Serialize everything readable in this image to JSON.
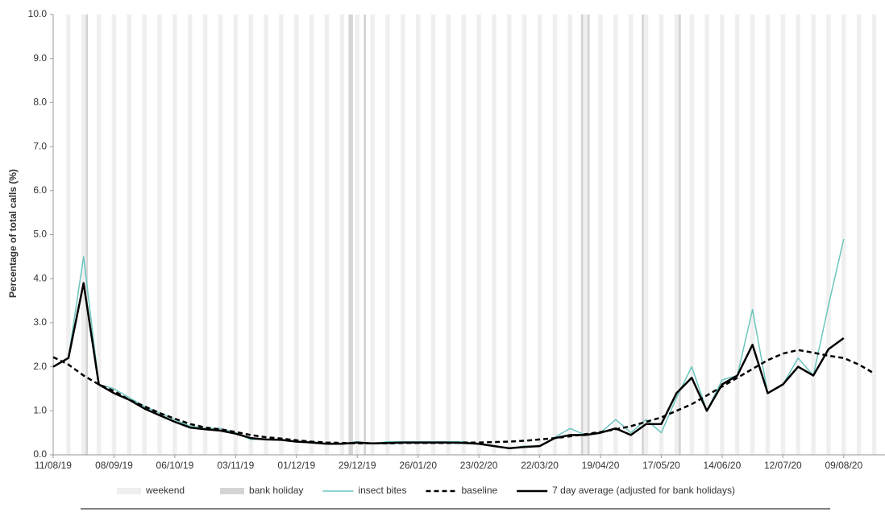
{
  "chart_data": {
    "type": "line",
    "y_label": "Percentage of total calls (%)",
    "x": [
      "11/08/19",
      "18/08/19",
      "25/08/19",
      "01/09/19",
      "08/09/19",
      "15/09/19",
      "22/09/19",
      "29/09/19",
      "06/10/19",
      "13/10/19",
      "20/10/19",
      "27/10/19",
      "03/11/19",
      "10/11/19",
      "17/11/19",
      "24/11/19",
      "01/12/19",
      "08/12/19",
      "15/12/19",
      "22/12/19",
      "29/12/19",
      "05/01/20",
      "12/01/20",
      "19/01/20",
      "26/01/20",
      "02/02/20",
      "09/02/20",
      "16/02/20",
      "23/02/20",
      "01/03/20",
      "08/03/20",
      "15/03/20",
      "22/03/20",
      "29/03/20",
      "05/04/20",
      "12/04/20",
      "19/04/20",
      "26/04/20",
      "03/05/20",
      "10/05/20",
      "17/05/20",
      "24/05/20",
      "31/05/20",
      "07/06/20",
      "14/06/20",
      "21/06/20",
      "28/06/20",
      "05/07/20",
      "12/07/20",
      "19/07/20",
      "26/07/20",
      "02/08/20",
      "09/08/20",
      "16/08/20",
      "23/08/20"
    ],
    "xlim": [
      "11/08/19",
      "28/08/20"
    ],
    "xticks": [
      "11/08/19",
      "08/09/19",
      "06/10/19",
      "03/11/19",
      "01/12/19",
      "29/12/19",
      "26/01/20",
      "23/02/20",
      "22/03/20",
      "19/04/20",
      "17/05/20",
      "14/06/20",
      "12/07/20",
      "09/08/20"
    ],
    "ylim": [
      0,
      10
    ],
    "yticks": [
      {
        "value": 0,
        "label": "0.0"
      },
      {
        "value": 1,
        "label": "1.0"
      },
      {
        "value": 2,
        "label": "2.0"
      },
      {
        "value": 3,
        "label": "3.0"
      },
      {
        "value": 4,
        "label": "4.0"
      },
      {
        "value": 5,
        "label": "5.0"
      },
      {
        "value": 6,
        "label": "6.0"
      },
      {
        "value": 7,
        "label": "7.0"
      },
      {
        "value": 8,
        "label": "8.0"
      },
      {
        "value": 9,
        "label": "9.0"
      },
      {
        "value": 10,
        "label": "10.0"
      }
    ],
    "weekend": {
      "name": "weekend",
      "color": "#efefef"
    },
    "bank_holiday": {
      "name": "bank holiday",
      "color": "#d4d4d4",
      "dates": [
        "26/08/19",
        "25/12/19",
        "26/12/19",
        "01/01/20",
        "10/04/20",
        "13/04/20",
        "08/05/20",
        "25/05/20"
      ]
    },
    "series": [
      {
        "name": "insect bites",
        "color": "#6cc5bf",
        "dashed": false,
        "width": 1.5,
        "values": [
          2.0,
          2.2,
          4.5,
          1.6,
          1.5,
          1.3,
          1.1,
          0.95,
          0.8,
          0.65,
          0.6,
          0.6,
          0.5,
          0.35,
          0.35,
          0.35,
          0.3,
          0.3,
          0.25,
          0.25,
          0.3,
          0.25,
          0.3,
          0.3,
          0.3,
          0.3,
          0.3,
          0.3,
          0.25,
          0.2,
          0.15,
          0.2,
          0.2,
          0.4,
          0.6,
          0.45,
          0.5,
          0.8,
          0.5,
          0.8,
          0.5,
          1.3,
          2.0,
          1.0,
          1.7,
          1.8,
          3.3,
          1.4,
          1.6,
          2.2,
          1.8,
          3.4,
          4.9,
          null,
          null
        ]
      },
      {
        "name": "baseline",
        "color": "#000000",
        "dashed": true,
        "width": 2.5,
        "values": [
          2.22,
          2.05,
          1.8,
          1.6,
          1.45,
          1.25,
          1.1,
          0.95,
          0.82,
          0.7,
          0.62,
          0.58,
          0.52,
          0.45,
          0.4,
          0.37,
          0.33,
          0.3,
          0.28,
          0.27,
          0.26,
          0.26,
          0.26,
          0.27,
          0.27,
          0.27,
          0.27,
          0.28,
          0.28,
          0.29,
          0.3,
          0.32,
          0.35,
          0.38,
          0.42,
          0.47,
          0.52,
          0.58,
          0.65,
          0.75,
          0.85,
          1.0,
          1.15,
          1.35,
          1.55,
          1.75,
          1.95,
          2.15,
          2.3,
          2.38,
          2.32,
          2.25,
          2.2,
          2.05,
          1.85
        ]
      },
      {
        "name": "7 day average (adjusted for bank holidays)",
        "color": "#000000",
        "dashed": false,
        "width": 2.5,
        "values": [
          2.0,
          2.2,
          3.9,
          1.6,
          1.4,
          1.25,
          1.05,
          0.9,
          0.75,
          0.62,
          0.58,
          0.55,
          0.48,
          0.38,
          0.35,
          0.34,
          0.3,
          0.28,
          0.25,
          0.25,
          0.28,
          0.26,
          0.27,
          0.28,
          0.28,
          0.28,
          0.28,
          0.27,
          0.25,
          0.2,
          0.15,
          0.18,
          0.2,
          0.38,
          0.45,
          0.45,
          0.5,
          0.6,
          0.45,
          0.7,
          0.7,
          1.4,
          1.75,
          1.0,
          1.6,
          1.8,
          2.5,
          1.4,
          1.6,
          2.0,
          1.8,
          2.4,
          2.65,
          null,
          null
        ]
      }
    ]
  }
}
